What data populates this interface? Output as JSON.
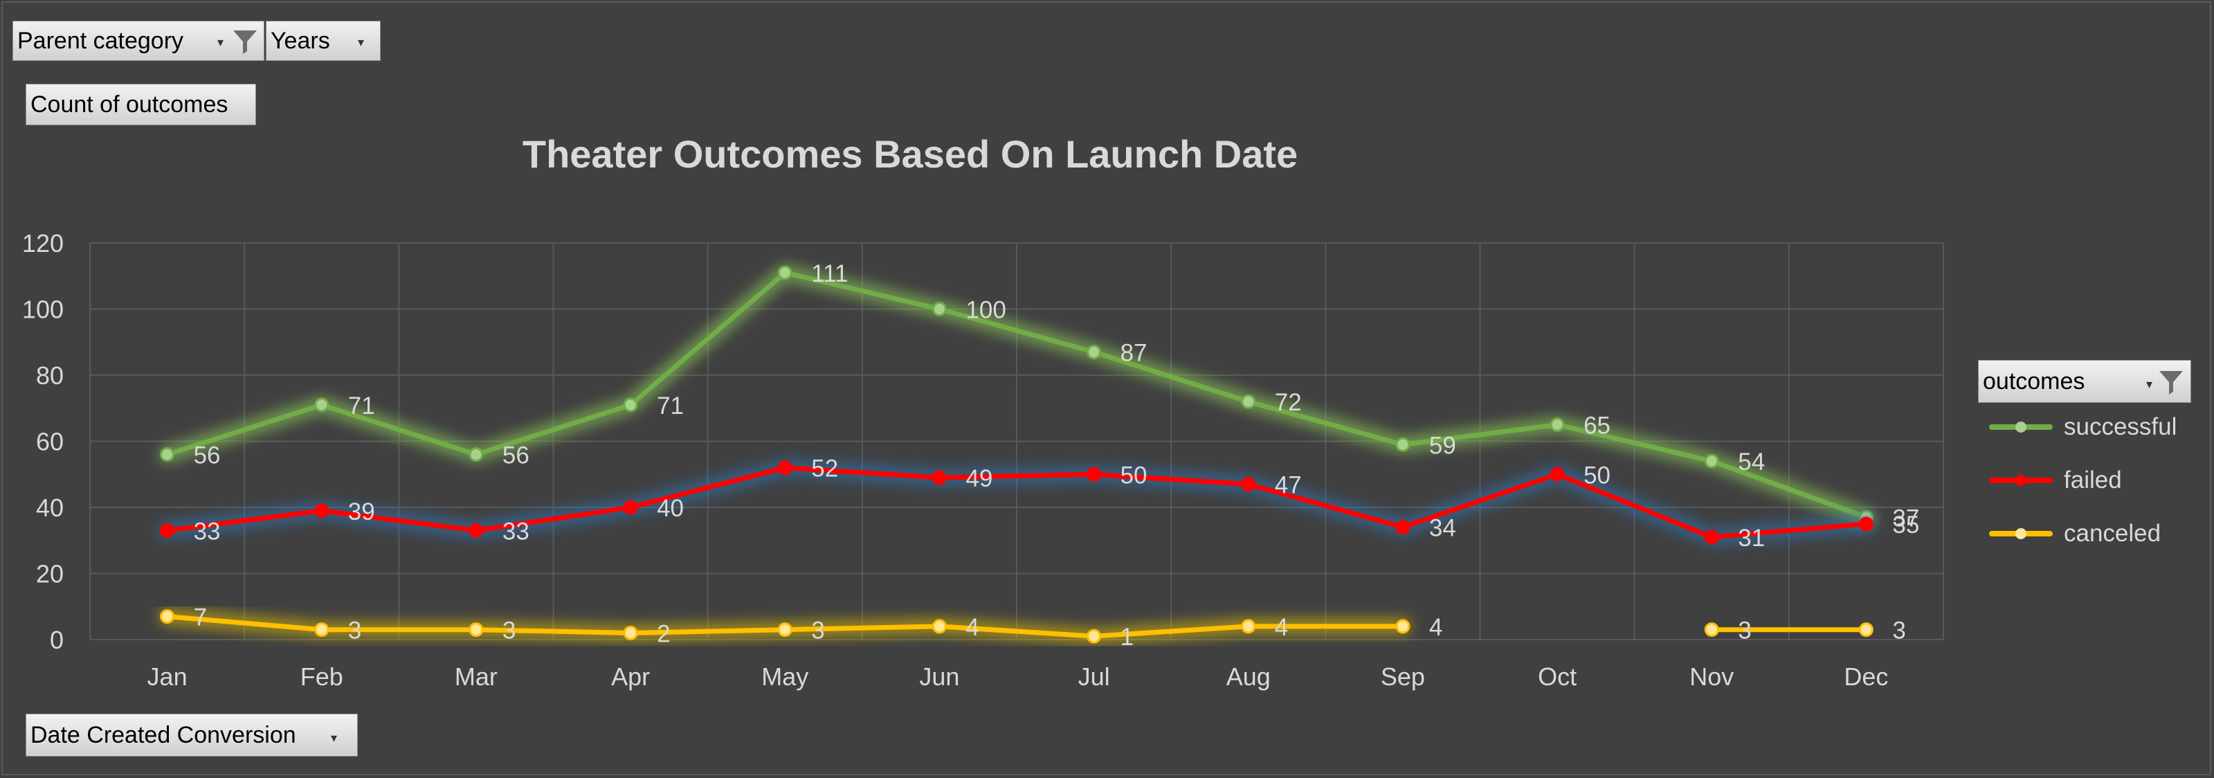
{
  "filters": {
    "parent_category": "Parent category",
    "years": "Years",
    "values_field": "Count of outcomes",
    "axis_field": "Date Created Conversion",
    "legend_field": "outcomes"
  },
  "colors": {
    "background": "#404040",
    "successful": "#70ad47",
    "failed": "#ff0000",
    "canceled": "#ffc000"
  },
  "chart_data": {
    "type": "line",
    "title": "Theater Outcomes Based On Launch Date",
    "categories": [
      "Jan",
      "Feb",
      "Mar",
      "Apr",
      "May",
      "Jun",
      "Jul",
      "Aug",
      "Sep",
      "Oct",
      "Nov",
      "Dec"
    ],
    "ylim": [
      0,
      120
    ],
    "yticks": [
      "0",
      "20",
      "40",
      "60",
      "80",
      "100",
      "120"
    ],
    "grid": true,
    "legend_position": "right",
    "series": [
      {
        "name": "successful",
        "values": [
          56,
          71,
          56,
          71,
          111,
          100,
          87,
          72,
          59,
          65,
          54,
          37
        ]
      },
      {
        "name": "failed",
        "values": [
          33,
          39,
          33,
          40,
          52,
          49,
          50,
          47,
          34,
          50,
          31,
          35
        ]
      },
      {
        "name": "canceled",
        "values": [
          7,
          3,
          3,
          2,
          3,
          4,
          1,
          4,
          4,
          null,
          3,
          3
        ]
      }
    ]
  }
}
